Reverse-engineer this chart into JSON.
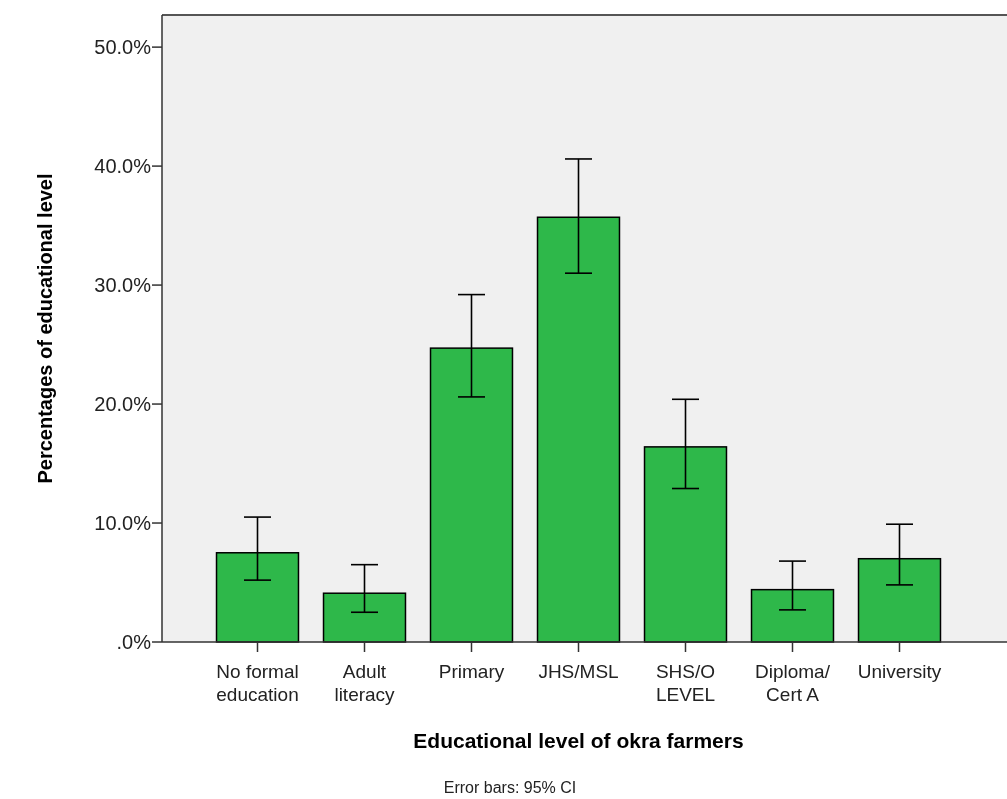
{
  "chart_data": {
    "type": "bar",
    "xlabel": "Educational level of okra farmers",
    "ylabel": "Percentages of educational level",
    "annotations": [
      "Error bars: 95% CI"
    ],
    "categories": [
      "No formal\neducation",
      "Adult\nliteracy",
      "Primary",
      "JHS/MSL",
      "SHS/O\nLEVEL",
      "Diploma/\nCert A",
      "University"
    ],
    "values": [
      7.5,
      4.1,
      24.7,
      35.7,
      16.4,
      4.4,
      7.0
    ],
    "errors": [
      [
        5.2,
        10.5
      ],
      [
        2.5,
        6.5
      ],
      [
        20.6,
        29.2
      ],
      [
        31.0,
        40.6
      ],
      [
        12.9,
        20.4
      ],
      [
        2.7,
        6.8
      ],
      [
        4.8,
        9.9
      ]
    ],
    "color": "#2eb84a",
    "ylim": [
      0,
      52.7
    ],
    "yticks": [
      {
        "value": 0,
        "label": ".0%"
      },
      {
        "value": 10,
        "label": "10.0%"
      },
      {
        "value": 20,
        "label": "20.0%"
      },
      {
        "value": 30,
        "label": "30.0%"
      },
      {
        "value": 40,
        "label": "40.0%"
      },
      {
        "value": 50,
        "label": "50.0%"
      }
    ]
  }
}
